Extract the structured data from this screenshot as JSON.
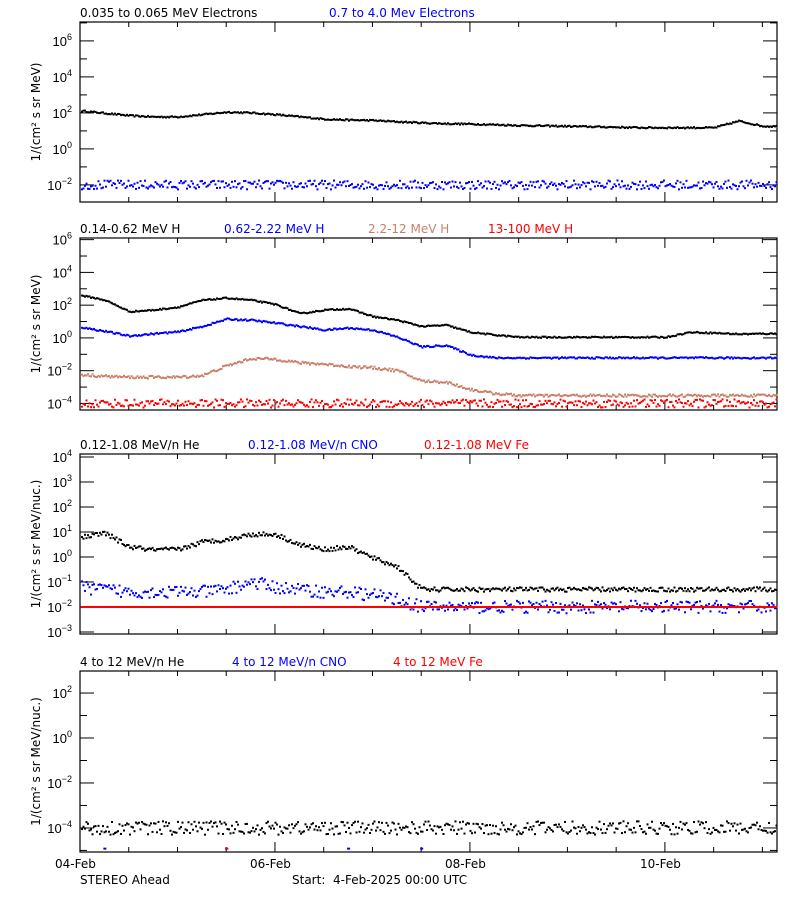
{
  "chart_data": [
    {
      "type": "scatter",
      "ylabel": "1/(cm² s sr MeV)",
      "yscale": "log",
      "ylim_exp": [
        -2.95,
        7.05
      ],
      "yticks_exp": [
        -2,
        0,
        2,
        4,
        6
      ],
      "series": [
        {
          "name": "0.035 to 0.065 MeV Electrons",
          "color": "#000000",
          "values": [
            130,
            95,
            70,
            60,
            60,
            80,
            110,
            100,
            80,
            60,
            45,
            40,
            38,
            32,
            28,
            25,
            24,
            22,
            20,
            19,
            18,
            17,
            16,
            15,
            15,
            15,
            15,
            35,
            18
          ]
        },
        {
          "name": "0.7 to 4.0 Mev Electrons",
          "color": "#0000ff",
          "values": [
            0.01,
            0.01,
            0.01,
            0.01,
            0.01,
            0.01,
            0.01,
            0.01,
            0.01,
            0.01,
            0.01,
            0.01,
            0.01,
            0.01,
            0.01,
            0.01,
            0.01,
            0.01,
            0.01,
            0.01,
            0.01,
            0.01,
            0.01,
            0.01,
            0.01,
            0.01,
            0.01,
            0.01,
            0.01
          ]
        }
      ]
    },
    {
      "type": "scatter",
      "ylabel": "1/(cm² s sr MeV)",
      "yscale": "log",
      "ylim_exp": [
        -4.4,
        6.1
      ],
      "yticks_exp": [
        -4,
        -2,
        0,
        2,
        4,
        6
      ],
      "series": [
        {
          "name": "0.14-0.62 MeV H",
          "color": "#000000",
          "values": [
            400,
            200,
            40,
            50,
            75,
            200,
            270,
            200,
            110,
            30,
            50,
            60,
            20,
            12,
            5,
            6,
            2.2,
            1.5,
            1.1,
            1.1,
            1.1,
            1.1,
            1.1,
            1.1,
            1.1,
            2.2,
            2.0,
            1.7,
            1.8
          ]
        },
        {
          "name": "0.62-2.22 MeV H",
          "color": "#0000ff",
          "values": [
            4.5,
            2.5,
            1.3,
            1.8,
            2.3,
            5,
            14,
            12,
            8,
            5,
            3,
            4,
            3,
            1.1,
            0.28,
            0.35,
            0.09,
            0.06,
            0.06,
            0.06,
            0.06,
            0.06,
            0.06,
            0.06,
            0.06,
            0.06,
            0.06,
            0.06,
            0.06
          ]
        },
        {
          "name": "2.2-12 MeV H",
          "color": "#c98068",
          "values": [
            0.0056,
            0.0045,
            0.004,
            0.004,
            0.004,
            0.005,
            0.02,
            0.055,
            0.05,
            0.03,
            0.025,
            0.018,
            0.015,
            0.01,
            0.0023,
            0.002,
            0.0007,
            0.0004,
            0.0003,
            0.0003,
            0.0003,
            0.0003,
            0.0003,
            0.0003,
            0.0003,
            0.0003,
            0.0003,
            0.0003,
            0.0003
          ]
        },
        {
          "name": "13-100 MeV H",
          "color": "#ff0000",
          "values": [
            0.0001,
            0.0001,
            0.0001,
            0.0001,
            0.0001,
            0.0001,
            0.0001,
            0.0001,
            0.0001,
            0.0001,
            0.0001,
            0.0001,
            0.0001,
            0.0001,
            0.0001,
            0.0001,
            0.0001,
            0.0001,
            0.0001,
            0.0001,
            0.0001,
            0.0001,
            0.0001,
            0.0001,
            0.0001,
            0.0001,
            0.0001,
            0.0001,
            0.0001
          ]
        }
      ]
    },
    {
      "type": "scatter",
      "ylabel": "1/(cm² s sr MeV/nuc.)",
      "yscale": "log",
      "ylim_exp": [
        -3.08,
        4.12
      ],
      "yticks_exp": [
        -3,
        -2,
        -1,
        0,
        1,
        2,
        3,
        4
      ],
      "series": [
        {
          "name": "0.12-1.08 MeV/n He",
          "color": "#000000",
          "values": [
            6,
            9,
            2.5,
            1.9,
            2,
            4,
            5,
            8,
            8,
            3,
            2,
            2.5,
            0.9,
            0.4,
            0.05,
            0.05,
            0.05,
            0.05,
            0.05,
            0.05,
            0.05,
            0.05,
            0.05,
            0.05,
            0.05,
            0.05,
            0.05,
            0.05,
            0.05
          ]
        },
        {
          "name": "0.12-1.08 MeV/n CNO",
          "color": "#0000ff",
          "values": [
            0.06,
            0.05,
            0.04,
            0.04,
            0.04,
            0.04,
            0.05,
            0.1,
            0.06,
            0.05,
            0.04,
            0.04,
            0.03,
            0.02,
            0.01,
            0.01,
            0.01,
            0.01,
            0.01,
            0.01,
            0.01,
            0.01,
            0.01,
            0.01,
            0.01,
            0.01,
            0.01,
            0.01,
            0.01
          ]
        },
        {
          "name": "0.12-1.08 MeV Fe",
          "color": "#ff0000",
          "values": [
            0.01,
            0.01,
            0.01,
            0.01,
            0.01,
            0.01,
            0.01,
            0.01,
            0.01,
            0.01,
            0.01,
            0.01,
            0.01,
            0.01,
            0.01,
            0.01,
            0.01,
            0.01,
            0.01,
            0.01,
            0.01,
            0.01,
            0.01,
            0.01,
            0.01,
            0.01,
            0.01,
            0.01,
            0.01
          ]
        }
      ]
    },
    {
      "type": "scatter",
      "ylabel": "1/(cm² s sr MeV/nuc.)",
      "yscale": "log",
      "ylim_exp": [
        -5.07,
        2.98
      ],
      "yticks_exp": [
        -4,
        -2,
        0,
        2
      ],
      "series": [
        {
          "name": "4 to 12 MeV/n He",
          "color": "#000000",
          "values": [
            0.0001,
            0.0001,
            0.0001,
            0.0001,
            0.0001,
            0.0001,
            0.0001,
            0.0001,
            0.0001,
            0.0001,
            0.0001,
            0.0001,
            0.0001,
            0.0001,
            0.0001,
            0.0001,
            0.0001,
            0.0001,
            0.0001,
            0.0001,
            0.0001,
            0.0001,
            0.0001,
            0.0001,
            0.0001,
            0.0001,
            0.0001,
            0.0001,
            0.0001
          ]
        },
        {
          "name": "4 to 12 MeV/n CNO",
          "color": "#0000ff",
          "values": [
            null,
            1.2e-05,
            null,
            null,
            null,
            null,
            1.2e-05,
            null,
            null,
            null,
            null,
            1.2e-05,
            null,
            null,
            1.2e-05,
            null,
            null,
            null,
            null,
            null,
            null,
            null,
            null,
            null,
            null,
            null,
            null,
            null,
            null
          ]
        },
        {
          "name": "4 to 12 MeV Fe",
          "color": "#ff0000",
          "values": [
            null,
            null,
            null,
            null,
            null,
            null,
            1.2e-05,
            null,
            null,
            null,
            null,
            null,
            null,
            null,
            null,
            null,
            null,
            null,
            null,
            null,
            null,
            null,
            null,
            null,
            null,
            null,
            null,
            null,
            null
          ]
        }
      ]
    }
  ],
  "x": [
    "2025-02-04T00:00",
    "2025-02-04T06:00",
    "2025-02-04T12:00",
    "2025-02-04T18:00",
    "2025-02-05T00:00",
    "2025-02-05T06:00",
    "2025-02-05T12:00",
    "2025-02-05T18:00",
    "2025-02-06T00:00",
    "2025-02-06T06:00",
    "2025-02-06T12:00",
    "2025-02-06T18:00",
    "2025-02-07T00:00",
    "2025-02-07T06:00",
    "2025-02-07T12:00",
    "2025-02-07T18:00",
    "2025-02-08T00:00",
    "2025-02-08T06:00",
    "2025-02-08T12:00",
    "2025-02-08T18:00",
    "2025-02-09T00:00",
    "2025-02-09T06:00",
    "2025-02-09T12:00",
    "2025-02-09T18:00",
    "2025-02-10T00:00",
    "2025-02-10T06:00",
    "2025-02-10T12:00",
    "2025-02-10T18:00",
    "2025-02-11T00:00"
  ],
  "xlim": [
    "2025-02-04T00:00",
    "2025-02-11T03:36"
  ],
  "xtick_labels": [
    "04-Feb",
    "06-Feb",
    "08-Feb",
    "10-Feb"
  ],
  "footer": {
    "spacecraft": "STEREO Ahead",
    "start": "Start:  4-Feb-2025 00:00 UTC"
  }
}
